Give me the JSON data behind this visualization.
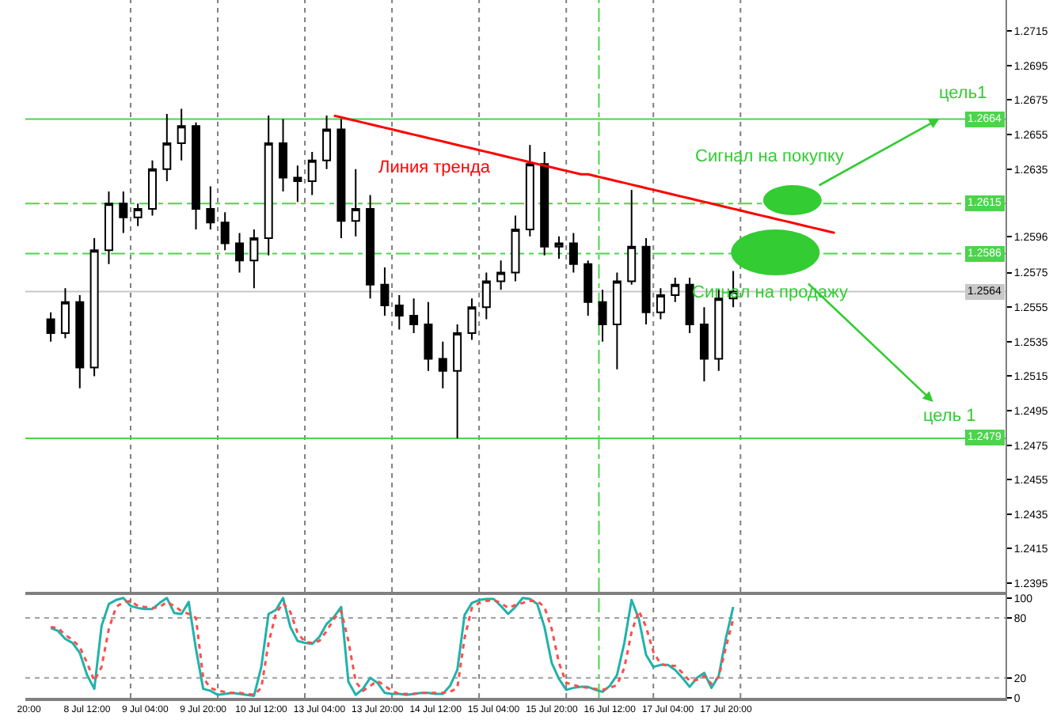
{
  "chart_data": [
    {
      "type": "candlestick",
      "categories": [
        null,
        null,
        null,
        null,
        null,
        null,
        null,
        null,
        null,
        null,
        null,
        null,
        null,
        null,
        null,
        null,
        null,
        null,
        null,
        null,
        null,
        null,
        null,
        null,
        null,
        null,
        null,
        null,
        null,
        null,
        null,
        null,
        null,
        null,
        null,
        null,
        null,
        null,
        null,
        null,
        null,
        null,
        null,
        null,
        null,
        null,
        null,
        null,
        null,
        null,
        null,
        null,
        null,
        null,
        null,
        null,
        null,
        null,
        null,
        null,
        null,
        null,
        null,
        null,
        null,
        null,
        null,
        null,
        null,
        null,
        null,
        null,
        null,
        null,
        null,
        null,
        null,
        null,
        null,
        null,
        null,
        null,
        null,
        null,
        null,
        null,
        null,
        null,
        null,
        null,
        null,
        null,
        null,
        null,
        null,
        null,
        null,
        null,
        null,
        null,
        null,
        null,
        null,
        null,
        null,
        null,
        null,
        null,
        null,
        null,
        null,
        null,
        null,
        null,
        null,
        null,
        null,
        null,
        null,
        null,
        null,
        null,
        null,
        null,
        null,
        null,
        null,
        null,
        null,
        null,
        null,
        null,
        null,
        null,
        null
      ],
      "ohlc": [
        null,
        null,
        null,
        [
          1.2548,
          1.2552,
          1.2535,
          1.254
        ],
        null,
        [
          1.254,
          1.2566,
          1.2537,
          1.2558
        ],
        null,
        [
          1.2558,
          1.2562,
          1.2508,
          1.252
        ],
        null,
        [
          1.252,
          1.2595,
          1.2515,
          1.2588
        ],
        null,
        [
          1.2588,
          1.2622,
          1.258,
          1.2615
        ],
        null,
        [
          1.2615,
          1.2622,
          1.2598,
          1.2607
        ],
        null,
        [
          1.2607,
          1.2615,
          1.2602,
          1.2612
        ],
        null,
        [
          1.2612,
          1.264,
          1.2608,
          1.2635
        ],
        null,
        [
          1.2635,
          1.2667,
          1.2628,
          1.265
        ],
        null,
        [
          1.265,
          1.267,
          1.264,
          1.266
        ],
        null,
        [
          1.266,
          1.2662,
          1.26,
          1.2612
        ],
        null,
        [
          1.2612,
          1.2625,
          1.26,
          1.2604
        ],
        null,
        [
          1.2604,
          1.261,
          1.2588,
          1.2592
        ],
        null,
        [
          1.2592,
          1.2598,
          1.2575,
          1.2582
        ],
        null,
        [
          1.2582,
          1.26,
          1.2566,
          1.2595
        ],
        null,
        [
          1.2595,
          1.2666,
          1.2585,
          1.265
        ],
        null,
        [
          1.265,
          1.2664,
          1.2622,
          1.263
        ],
        null,
        [
          1.263,
          1.2637,
          1.2616,
          1.2628
        ],
        null,
        [
          1.2628,
          1.2645,
          1.262,
          1.264
        ],
        null,
        [
          1.264,
          1.2666,
          1.2635,
          1.2658
        ],
        null,
        [
          1.2658,
          1.2664,
          1.2595,
          1.2605
        ],
        null,
        [
          1.2605,
          1.2635,
          1.2596,
          1.2612
        ],
        null,
        [
          1.2612,
          1.262,
          1.256,
          1.2568
        ],
        null,
        [
          1.2568,
          1.2578,
          1.255,
          1.2556
        ],
        null,
        [
          1.2556,
          1.2562,
          1.2542,
          1.255
        ],
        null,
        [
          1.255,
          1.256,
          1.254,
          1.2545
        ],
        null,
        [
          1.2545,
          1.2558,
          1.2518,
          1.2525
        ],
        null,
        [
          1.2525,
          1.2535,
          1.2508,
          1.2518
        ],
        null,
        [
          1.2518,
          1.2545,
          1.2479,
          1.254
        ],
        null,
        [
          1.254,
          1.256,
          1.2536,
          1.2555
        ],
        null,
        [
          1.2555,
          1.2575,
          1.2548,
          1.257
        ],
        null,
        [
          1.257,
          1.2582,
          1.2565,
          1.2575
        ],
        null,
        [
          1.2575,
          1.2608,
          1.257,
          1.26
        ],
        null,
        [
          1.26,
          1.2649,
          1.2596,
          1.2638
        ],
        null,
        [
          1.2638,
          1.2645,
          1.2585,
          1.259
        ],
        null,
        [
          1.259,
          1.2596,
          1.2583,
          1.2592
        ],
        null,
        [
          1.2592,
          1.2598,
          1.2575,
          1.258
        ],
        null,
        [
          1.258,
          1.2582,
          1.255,
          1.2558
        ],
        null,
        [
          1.2558,
          1.2565,
          1.2535,
          1.2545
        ],
        null,
        [
          1.2545,
          1.2575,
          1.2519,
          1.257
        ],
        null,
        [
          1.257,
          1.2623,
          1.2568,
          1.259
        ],
        null,
        [
          1.259,
          1.2595,
          1.2545,
          1.2552
        ],
        null,
        [
          1.2552,
          1.2566,
          1.2548,
          1.2562
        ],
        null,
        [
          1.2562,
          1.2572,
          1.2558,
          1.2568
        ],
        null,
        [
          1.2568,
          1.2572,
          1.254,
          1.2545
        ],
        null,
        [
          1.2545,
          1.2555,
          1.2512,
          1.2525
        ],
        null,
        [
          1.2525,
          1.2565,
          1.2518,
          1.256
        ],
        null,
        [
          1.256,
          1.2576,
          1.2555,
          1.2564
        ],
        null,
        null,
        null,
        null,
        null,
        null,
        null,
        null,
        null,
        null,
        null,
        null,
        null,
        null,
        null,
        null,
        null,
        null,
        null,
        null,
        null,
        null,
        null,
        null,
        null,
        null,
        null,
        null,
        null,
        null,
        null,
        null,
        null,
        null,
        null,
        null,
        null
      ],
      "series": [
        {
          "type": "line",
          "name": "Линия тренда",
          "color": "#ff0000",
          "values": [
            null,
            null,
            null,
            null,
            null,
            null,
            null,
            null,
            null,
            null,
            null,
            null,
            null,
            null,
            null,
            null,
            null,
            null,
            null,
            null,
            null,
            null,
            null,
            null,
            null,
            null,
            null,
            null,
            null,
            null,
            null,
            null,
            null,
            null,
            null,
            null,
            null,
            null,
            null,
            null,
            null,
            null,
            1.2666,
            1.2665,
            1.2664,
            1.2663,
            1.2662,
            1.2661,
            1.266,
            1.2659,
            1.2658,
            1.2657,
            1.2656,
            1.2655,
            1.2654,
            1.2653,
            1.2652,
            1.2651,
            1.265,
            1.2649,
            1.2648,
            1.2647,
            1.2646,
            1.2645,
            1.2644,
            1.2643,
            1.2642,
            1.2641,
            1.264,
            1.2639,
            1.2638,
            1.2637,
            1.2636,
            1.2635,
            1.2634,
            1.2633,
            1.2632,
            1.2632,
            1.2631,
            1.263,
            1.2629,
            1.2628,
            1.2627,
            1.2626,
            1.2625,
            1.2624,
            1.2623,
            1.2622,
            1.2621,
            1.262,
            1.2619,
            1.2618,
            1.2617,
            1.2616,
            1.2615,
            1.2614,
            1.2613,
            1.2612,
            1.2611,
            1.261,
            1.2609,
            1.2608,
            1.2607,
            1.2606,
            1.2605,
            1.2604,
            1.2603,
            1.2602,
            1.2601,
            1.26,
            1.2599,
            1.2598,
            null,
            null,
            null,
            null,
            null,
            null,
            null,
            null,
            null,
            null,
            null,
            null,
            null,
            null,
            null,
            null,
            null,
            null,
            null,
            null,
            null,
            null,
            null
          ]
        }
      ],
      "ylim": [
        1.239,
        1.2733
      ],
      "yticks": [
        1.2395,
        1.2415,
        1.2435,
        1.2455,
        1.2475,
        1.2495,
        1.2515,
        1.2535,
        1.2555,
        1.2575,
        1.2596,
        1.2635,
        1.2655,
        1.2675,
        1.2695,
        1.2715
      ],
      "tick_labels": "y",
      "ref_lines": [
        {
          "axis": "y",
          "value": 1.2664,
          "label": "1.2664",
          "color": "#4cd44c",
          "line_style": "solid"
        },
        {
          "axis": "y",
          "value": 1.2615,
          "label": "1.2615",
          "color": "#4cd44c",
          "line_style": "dashdot"
        },
        {
          "axis": "y",
          "value": 1.2586,
          "label": "1.2586",
          "color": "#4cd44c",
          "line_style": "dashdot"
        },
        {
          "axis": "y",
          "value": 1.2564,
          "label": "1.2564",
          "color": "#c8c8c8",
          "line_style": "solid"
        },
        {
          "axis": "y",
          "value": 1.2479,
          "label": "1.2479",
          "color": "#4cd44c",
          "line_style": "solid"
        }
      ],
      "annotations": [
        "Сигнал на покупку",
        "Сигнал на продажу",
        "цель1",
        "цель 1"
      ]
    },
    {
      "type": "line",
      "categories": [
        "20:00",
        null,
        null,
        null,
        null,
        null,
        null,
        null,
        "8 Jul 12:00",
        null,
        null,
        null,
        null,
        null,
        null,
        null,
        "9 Jul 04:00",
        null,
        null,
        null,
        null,
        null,
        null,
        null,
        "9 Jul 20:00",
        null,
        null,
        null,
        null,
        null,
        null,
        null,
        "10 Jul 12:00",
        null,
        null,
        null,
        null,
        null,
        null,
        null,
        "13 Jul 04:00",
        null,
        null,
        null,
        null,
        null,
        null,
        null,
        "13 Jul 20:00",
        null,
        null,
        null,
        null,
        null,
        null,
        null,
        "14 Jul 12:00",
        null,
        null,
        null,
        null,
        null,
        null,
        null,
        "15 Jul 04:00",
        null,
        null,
        null,
        null,
        null,
        null,
        null,
        "15 Jul 20:00",
        null,
        null,
        null,
        null,
        null,
        null,
        null,
        "16 Jul 12:00",
        null,
        null,
        null,
        null,
        null,
        null,
        null,
        "17 Jul 04:00",
        null,
        null,
        null,
        null,
        null,
        null,
        null,
        "17 Jul 20:00",
        null,
        null,
        null,
        null,
        null,
        null,
        null,
        null,
        null,
        null,
        null,
        null,
        null,
        null,
        null,
        null,
        null,
        null,
        null,
        null,
        null,
        null,
        null,
        null,
        null,
        null,
        null,
        null,
        null,
        null,
        null,
        null,
        null,
        null,
        null,
        null,
        null,
        null
      ],
      "series": [
        {
          "color": "#20b2aa",
          "line_style": "solid",
          "values": [
            null,
            null,
            null,
            70,
            67,
            59,
            55,
            45,
            23,
            9,
            72,
            94,
            98,
            100,
            92,
            90,
            89,
            89,
            95,
            100,
            85,
            84,
            96,
            49,
            9,
            7,
            3,
            4,
            5,
            4,
            3,
            2,
            31,
            84,
            88,
            100,
            71,
            57,
            55,
            54,
            61,
            74,
            81,
            91,
            16,
            3,
            9,
            20,
            15,
            5,
            4,
            4,
            3,
            4,
            5,
            5,
            4,
            4,
            12,
            28,
            83,
            95,
            98,
            99,
            99,
            92,
            84,
            91,
            100,
            99,
            94,
            71,
            35,
            19,
            8,
            10,
            11,
            11,
            8,
            6,
            12,
            23,
            55,
            98,
            79,
            43,
            31,
            33,
            33,
            28,
            20,
            11,
            20,
            25,
            10,
            22,
            60,
            91,
            null,
            null,
            null,
            null,
            null,
            null,
            null,
            null,
            null,
            null,
            null,
            null,
            null,
            null,
            null,
            null,
            null,
            null,
            null,
            null,
            null,
            null,
            null,
            null,
            null,
            null,
            null,
            null,
            null,
            null,
            null,
            null,
            null,
            null,
            null,
            null,
            null
          ]
        },
        {
          "color": "#ff4d4d",
          "line_style": "dotted",
          "values": [
            null,
            null,
            null,
            71,
            70,
            63,
            58,
            51,
            35,
            17,
            31,
            69,
            91,
            96,
            97,
            92,
            91,
            90,
            91,
            96,
            92,
            87,
            84,
            80,
            20,
            10,
            7,
            6,
            5,
            5,
            4,
            3,
            10,
            55,
            84,
            95,
            86,
            65,
            56,
            55,
            57,
            67,
            79,
            87,
            57,
            16,
            7,
            12,
            17,
            12,
            7,
            4,
            4,
            4,
            5,
            5,
            5,
            5,
            6,
            10,
            60,
            90,
            95,
            97,
            98,
            95,
            90,
            93,
            95,
            97,
            97,
            91,
            69,
            35,
            15,
            13,
            11,
            10,
            9,
            8,
            10,
            13,
            30,
            66,
            87,
            71,
            46,
            34,
            32,
            32,
            25,
            17,
            18,
            22,
            14,
            21,
            51,
            79,
            null,
            null,
            null,
            null,
            null,
            null,
            null,
            null,
            null,
            null,
            null,
            null,
            null,
            null,
            null,
            null,
            null,
            null,
            null,
            null,
            null,
            null,
            null,
            null,
            null,
            null,
            null,
            null,
            null,
            null,
            null,
            null,
            null,
            null,
            null,
            null,
            null
          ]
        }
      ],
      "ylim": [
        0,
        103
      ],
      "yticks": [
        0,
        20,
        80,
        100
      ],
      "ref_lines": [
        {
          "axis": "y",
          "value": 80,
          "color": "#a0a0a0",
          "line_style": "dotted"
        },
        {
          "axis": "y",
          "value": 20,
          "color": "#a0a0a0",
          "line_style": "dotted"
        }
      ]
    }
  ]
}
